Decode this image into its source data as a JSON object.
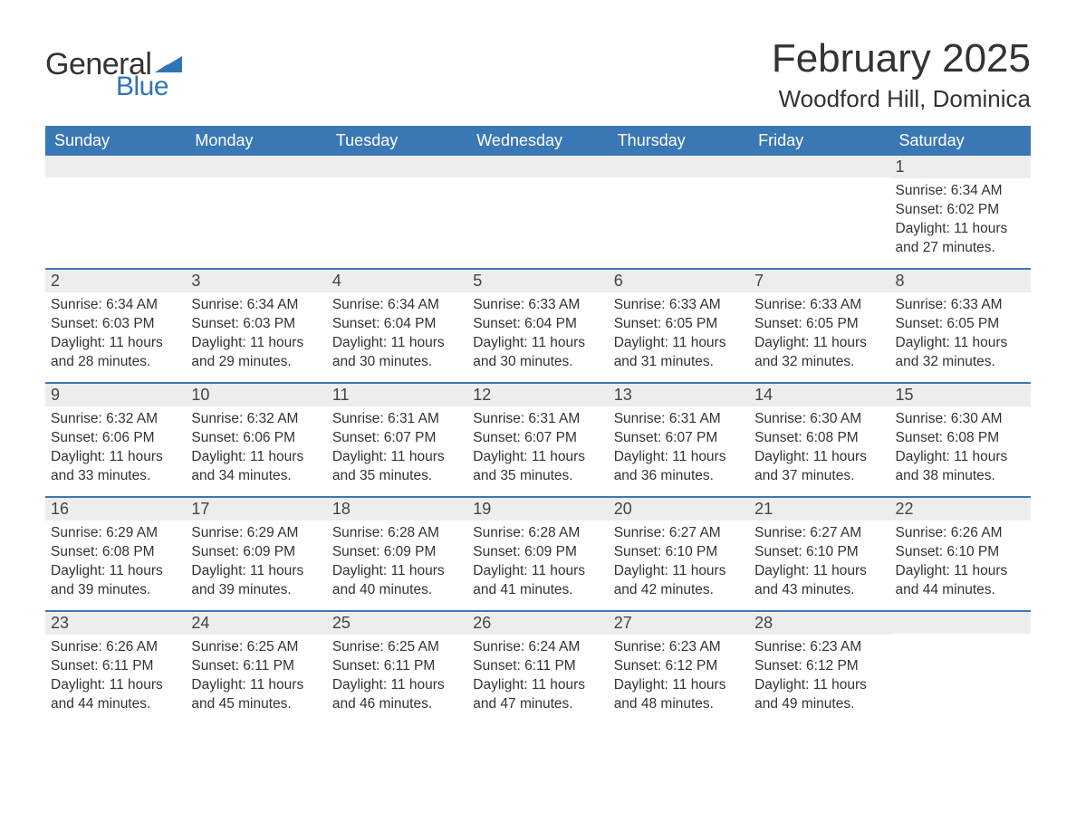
{
  "logo": {
    "text1": "General",
    "text2": "Blue",
    "flag_color": "#2f75b5"
  },
  "title": "February 2025",
  "location": "Woodford Hill, Dominica",
  "colors": {
    "header_bg": "#3a78b5",
    "header_text": "#ffffff",
    "band_bg": "#ededed",
    "row_border": "#3a78b5",
    "body_text": "#333333",
    "page_bg": "#ffffff"
  },
  "fonts": {
    "title_size": 44,
    "location_size": 26,
    "weekday_size": 18,
    "daynum_size": 18,
    "body_size": 15.5
  },
  "weekdays": [
    "Sunday",
    "Monday",
    "Tuesday",
    "Wednesday",
    "Thursday",
    "Friday",
    "Saturday"
  ],
  "labels": {
    "sunrise": "Sunrise: ",
    "sunset": "Sunset: ",
    "daylight": "Daylight: "
  },
  "weeks": [
    [
      {
        "day": null
      },
      {
        "day": null
      },
      {
        "day": null
      },
      {
        "day": null
      },
      {
        "day": null
      },
      {
        "day": null
      },
      {
        "day": 1,
        "sunrise": "6:34 AM",
        "sunset": "6:02 PM",
        "daylight": "11 hours and 27 minutes."
      }
    ],
    [
      {
        "day": 2,
        "sunrise": "6:34 AM",
        "sunset": "6:03 PM",
        "daylight": "11 hours and 28 minutes."
      },
      {
        "day": 3,
        "sunrise": "6:34 AM",
        "sunset": "6:03 PM",
        "daylight": "11 hours and 29 minutes."
      },
      {
        "day": 4,
        "sunrise": "6:34 AM",
        "sunset": "6:04 PM",
        "daylight": "11 hours and 30 minutes."
      },
      {
        "day": 5,
        "sunrise": "6:33 AM",
        "sunset": "6:04 PM",
        "daylight": "11 hours and 30 minutes."
      },
      {
        "day": 6,
        "sunrise": "6:33 AM",
        "sunset": "6:05 PM",
        "daylight": "11 hours and 31 minutes."
      },
      {
        "day": 7,
        "sunrise": "6:33 AM",
        "sunset": "6:05 PM",
        "daylight": "11 hours and 32 minutes."
      },
      {
        "day": 8,
        "sunrise": "6:33 AM",
        "sunset": "6:05 PM",
        "daylight": "11 hours and 32 minutes."
      }
    ],
    [
      {
        "day": 9,
        "sunrise": "6:32 AM",
        "sunset": "6:06 PM",
        "daylight": "11 hours and 33 minutes."
      },
      {
        "day": 10,
        "sunrise": "6:32 AM",
        "sunset": "6:06 PM",
        "daylight": "11 hours and 34 minutes."
      },
      {
        "day": 11,
        "sunrise": "6:31 AM",
        "sunset": "6:07 PM",
        "daylight": "11 hours and 35 minutes."
      },
      {
        "day": 12,
        "sunrise": "6:31 AM",
        "sunset": "6:07 PM",
        "daylight": "11 hours and 35 minutes."
      },
      {
        "day": 13,
        "sunrise": "6:31 AM",
        "sunset": "6:07 PM",
        "daylight": "11 hours and 36 minutes."
      },
      {
        "day": 14,
        "sunrise": "6:30 AM",
        "sunset": "6:08 PM",
        "daylight": "11 hours and 37 minutes."
      },
      {
        "day": 15,
        "sunrise": "6:30 AM",
        "sunset": "6:08 PM",
        "daylight": "11 hours and 38 minutes."
      }
    ],
    [
      {
        "day": 16,
        "sunrise": "6:29 AM",
        "sunset": "6:08 PM",
        "daylight": "11 hours and 39 minutes."
      },
      {
        "day": 17,
        "sunrise": "6:29 AM",
        "sunset": "6:09 PM",
        "daylight": "11 hours and 39 minutes."
      },
      {
        "day": 18,
        "sunrise": "6:28 AM",
        "sunset": "6:09 PM",
        "daylight": "11 hours and 40 minutes."
      },
      {
        "day": 19,
        "sunrise": "6:28 AM",
        "sunset": "6:09 PM",
        "daylight": "11 hours and 41 minutes."
      },
      {
        "day": 20,
        "sunrise": "6:27 AM",
        "sunset": "6:10 PM",
        "daylight": "11 hours and 42 minutes."
      },
      {
        "day": 21,
        "sunrise": "6:27 AM",
        "sunset": "6:10 PM",
        "daylight": "11 hours and 43 minutes."
      },
      {
        "day": 22,
        "sunrise": "6:26 AM",
        "sunset": "6:10 PM",
        "daylight": "11 hours and 44 minutes."
      }
    ],
    [
      {
        "day": 23,
        "sunrise": "6:26 AM",
        "sunset": "6:11 PM",
        "daylight": "11 hours and 44 minutes."
      },
      {
        "day": 24,
        "sunrise": "6:25 AM",
        "sunset": "6:11 PM",
        "daylight": "11 hours and 45 minutes."
      },
      {
        "day": 25,
        "sunrise": "6:25 AM",
        "sunset": "6:11 PM",
        "daylight": "11 hours and 46 minutes."
      },
      {
        "day": 26,
        "sunrise": "6:24 AM",
        "sunset": "6:11 PM",
        "daylight": "11 hours and 47 minutes."
      },
      {
        "day": 27,
        "sunrise": "6:23 AM",
        "sunset": "6:12 PM",
        "daylight": "11 hours and 48 minutes."
      },
      {
        "day": 28,
        "sunrise": "6:23 AM",
        "sunset": "6:12 PM",
        "daylight": "11 hours and 49 minutes."
      },
      {
        "day": null
      }
    ]
  ]
}
